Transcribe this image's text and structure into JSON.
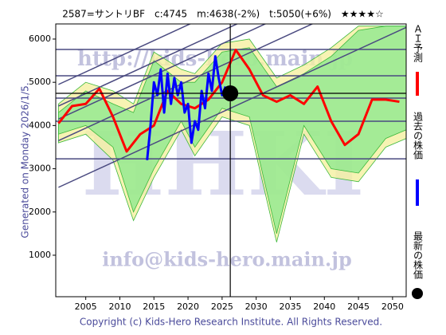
{
  "chart_data": {
    "type": "line",
    "title": "2587=サントリBF　c:4745　m:4638(-2%)　t:5050(+6%)　★★★★☆",
    "y_label": "Generated on Monday 2026/1/5.",
    "footer": "Copyright (c) Kids-Hero Research Institute. All Rights Reserved.",
    "watermarks": [
      "http://kids-hero.main.jp",
      "HHKI",
      "info@kids-hero.main.jp"
    ],
    "xlim": [
      2000.6,
      2052
    ],
    "ylim": [
      40,
      6350
    ],
    "xticks": [
      2005,
      2010,
      2015,
      2020,
      2025,
      2030,
      2035,
      2040,
      2045,
      2050
    ],
    "yticks": [
      1000,
      2000,
      3000,
      4000,
      5000,
      6000
    ],
    "bands": [
      {
        "color": "#f5f0a0",
        "x": [
          2001,
          2005,
          2009,
          2012,
          2015,
          2019,
          2021,
          2025,
          2029,
          2033,
          2037,
          2041,
          2045,
          2049,
          2052
        ],
        "upper": [
          4500,
          5000,
          4800,
          4500,
          5700,
          5300,
          5200,
          5900,
          6000,
          5100,
          5400,
          5800,
          6300,
          6300,
          6300
        ],
        "lower": [
          3600,
          3800,
          3200,
          1800,
          2800,
          3900,
          3300,
          4200,
          4000,
          1300,
          3800,
          2800,
          2700,
          3500,
          3700
        ]
      },
      {
        "color": "#8fe88f",
        "x": [
          2001,
          2005,
          2009,
          2012,
          2015,
          2019,
          2021,
          2025,
          2029,
          2033,
          2037,
          2041,
          2045,
          2049,
          2052
        ],
        "upper": [
          4300,
          4800,
          4500,
          4300,
          5500,
          5000,
          5000,
          5700,
          5800,
          4900,
          5200,
          5600,
          6200,
          6300,
          6300
        ],
        "lower": [
          3800,
          4000,
          3500,
          2000,
          3000,
          4100,
          3500,
          4400,
          4200,
          1500,
          4000,
          3000,
          2900,
          3700,
          3900
        ]
      }
    ],
    "levels": {
      "color": "#4a4a80",
      "values": [
        5760,
        5150,
        4635,
        4100,
        3230
      ]
    },
    "trend_lines": {
      "color": "#4a4a80",
      "x": [
        2001,
        2052
      ],
      "lines": [
        [
          2570,
          6270
        ],
        [
          3650,
          7350
        ],
        [
          4150,
          7850
        ],
        [
          4450,
          8150
        ],
        [
          4950,
          8650
        ]
      ]
    },
    "series": [
      {
        "name": "ＡＩ予測",
        "color": "#ff0000",
        "x": [
          2001,
          2003,
          2005,
          2007,
          2009,
          2011,
          2013,
          2015,
          2017,
          2019,
          2021,
          2023,
          2025,
          2027,
          2029,
          2031,
          2033,
          2035,
          2037,
          2039,
          2041,
          2043,
          2045,
          2047,
          2049,
          2051
        ],
        "values": [
          4050,
          4450,
          4500,
          4850,
          4200,
          3400,
          3800,
          4000,
          4800,
          4500,
          4400,
          4600,
          5000,
          5750,
          5300,
          4700,
          4550,
          4700,
          4500,
          4900,
          4100,
          3550,
          3800,
          4600,
          4600,
          4550
        ]
      },
      {
        "name": "過去の株価",
        "color": "#0000ff",
        "x": [
          2014,
          2014.5,
          2015,
          2015.5,
          2016,
          2016.5,
          2017,
          2017.5,
          2018,
          2018.5,
          2019,
          2019.5,
          2020,
          2020.5,
          2021,
          2021.5,
          2022,
          2022.5,
          2023,
          2023.5,
          2024,
          2024.5,
          2025,
          2025.5
        ],
        "values": [
          3200,
          4000,
          5000,
          4700,
          5300,
          4300,
          5200,
          4500,
          5100,
          4700,
          5000,
          4300,
          4500,
          3600,
          4100,
          3900,
          4800,
          4400,
          5200,
          4800,
          5600,
          5100,
          4700,
          4900
        ]
      },
      {
        "name": "最新の株価",
        "color": "#000000",
        "x": [
          2026.2
        ],
        "values": [
          4745
        ]
      }
    ]
  }
}
